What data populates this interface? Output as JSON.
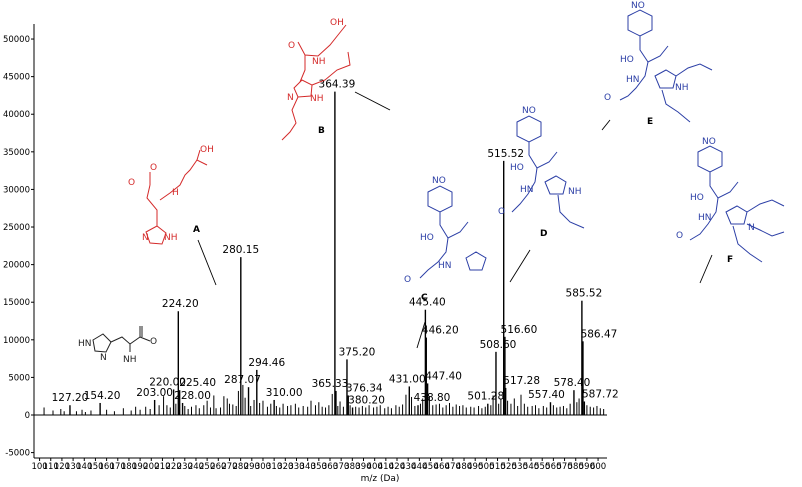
{
  "chart_data": {
    "type": "bar",
    "xlabel": "m/z (Da)",
    "ylabel": "",
    "xlim": [
      95,
      608
    ],
    "ylim": [
      -5000,
      52000
    ],
    "x_ticks": [
      100,
      110,
      120,
      130,
      140,
      150,
      160,
      170,
      180,
      190,
      200,
      210,
      220,
      230,
      240,
      250,
      260,
      270,
      280,
      290,
      300,
      310,
      320,
      330,
      340,
      350,
      360,
      370,
      380,
      390,
      400,
      410,
      420,
      430,
      440,
      450,
      460,
      470,
      480,
      490,
      500,
      510,
      520,
      530,
      540,
      550,
      560,
      570,
      580,
      590,
      600
    ],
    "y_ticks": [
      -5000,
      0,
      5000,
      10000,
      15000,
      20000,
      25000,
      30000,
      35000,
      40000,
      45000,
      50000
    ],
    "labeled_peaks": [
      {
        "label": "127.20",
        "x": 127.2,
        "y": 1300
      },
      {
        "label": "154.20",
        "x": 154.2,
        "y": 1600
      },
      {
        "label": "203.00",
        "x": 203.0,
        "y": 2000
      },
      {
        "label": "220.00",
        "x": 220.0,
        "y": 3400
      },
      {
        "label": "224.20",
        "x": 224.2,
        "y": 13800
      },
      {
        "label": "225.40",
        "x": 225.4,
        "y": 3300
      },
      {
        "label": "228.00",
        "x": 228.0,
        "y": 1600
      },
      {
        "label": "280.15",
        "x": 280.15,
        "y": 21000
      },
      {
        "label": "287.07",
        "x": 287.07,
        "y": 3700
      },
      {
        "label": "294.46",
        "x": 294.46,
        "y": 6000
      },
      {
        "label": "310.00",
        "x": 310.0,
        "y": 2000
      },
      {
        "label": "364.39",
        "x": 364.39,
        "y": 43000
      },
      {
        "label": "365.33",
        "x": 365.33,
        "y": 3200
      },
      {
        "label": "375.20",
        "x": 375.2,
        "y": 7400
      },
      {
        "label": "376.34",
        "x": 376.34,
        "y": 2600
      },
      {
        "label": "380.20",
        "x": 380.2,
        "y": 1000
      },
      {
        "label": "431.00",
        "x": 431.0,
        "y": 3800
      },
      {
        "label": "438.80",
        "x": 438.8,
        "y": 1300
      },
      {
        "label": "445.40",
        "x": 445.4,
        "y": 14000
      },
      {
        "label": "446.20",
        "x": 446.2,
        "y": 10300
      },
      {
        "label": "447.40",
        "x": 447.4,
        "y": 4200
      },
      {
        "label": "501.28",
        "x": 501.28,
        "y": 1500
      },
      {
        "label": "508.60",
        "x": 508.6,
        "y": 8400
      },
      {
        "label": "515.52",
        "x": 515.52,
        "y": 33800
      },
      {
        "label": "516.60",
        "x": 516.6,
        "y": 10400
      },
      {
        "label": "517.28",
        "x": 517.28,
        "y": 3600
      },
      {
        "label": "557.40",
        "x": 557.4,
        "y": 1700
      },
      {
        "label": "578.40",
        "x": 578.4,
        "y": 3300
      },
      {
        "label": "585.52",
        "x": 585.52,
        "y": 15200
      },
      {
        "label": "586.47",
        "x": 586.47,
        "y": 9800
      },
      {
        "label": "587.72",
        "x": 587.72,
        "y": 1800
      }
    ],
    "minor_peaks": [
      {
        "x": 104,
        "y": 1000
      },
      {
        "x": 112,
        "y": 600
      },
      {
        "x": 119,
        "y": 800
      },
      {
        "x": 122,
        "y": 500
      },
      {
        "x": 133,
        "y": 500
      },
      {
        "x": 138,
        "y": 700
      },
      {
        "x": 141,
        "y": 400
      },
      {
        "x": 146,
        "y": 600
      },
      {
        "x": 160,
        "y": 700
      },
      {
        "x": 167,
        "y": 500
      },
      {
        "x": 175,
        "y": 900
      },
      {
        "x": 182,
        "y": 600
      },
      {
        "x": 186,
        "y": 1100
      },
      {
        "x": 190,
        "y": 700
      },
      {
        "x": 195,
        "y": 1100
      },
      {
        "x": 199,
        "y": 800
      },
      {
        "x": 207,
        "y": 1300
      },
      {
        "x": 211,
        "y": 2500
      },
      {
        "x": 214,
        "y": 1300
      },
      {
        "x": 217,
        "y": 1000
      },
      {
        "x": 222,
        "y": 1500
      },
      {
        "x": 230,
        "y": 1200
      },
      {
        "x": 233,
        "y": 800
      },
      {
        "x": 236,
        "y": 1100
      },
      {
        "x": 240,
        "y": 1300
      },
      {
        "x": 243,
        "y": 900
      },
      {
        "x": 247,
        "y": 1300
      },
      {
        "x": 250,
        "y": 1900
      },
      {
        "x": 253,
        "y": 1000
      },
      {
        "x": 256,
        "y": 2600
      },
      {
        "x": 258,
        "y": 900
      },
      {
        "x": 262,
        "y": 1000
      },
      {
        "x": 265,
        "y": 2500
      },
      {
        "x": 268,
        "y": 2200
      },
      {
        "x": 270,
        "y": 1500
      },
      {
        "x": 273,
        "y": 1400
      },
      {
        "x": 276,
        "y": 1200
      },
      {
        "x": 278,
        "y": 3200
      },
      {
        "x": 282,
        "y": 4000
      },
      {
        "x": 284,
        "y": 2300
      },
      {
        "x": 289,
        "y": 1200
      },
      {
        "x": 292,
        "y": 2000
      },
      {
        "x": 297,
        "y": 1600
      },
      {
        "x": 300,
        "y": 1900
      },
      {
        "x": 304,
        "y": 1100
      },
      {
        "x": 307,
        "y": 1500
      },
      {
        "x": 312,
        "y": 1200
      },
      {
        "x": 315,
        "y": 1000
      },
      {
        "x": 318,
        "y": 1500
      },
      {
        "x": 322,
        "y": 1200
      },
      {
        "x": 325,
        "y": 1300
      },
      {
        "x": 329,
        "y": 1500
      },
      {
        "x": 332,
        "y": 1000
      },
      {
        "x": 336,
        "y": 1200
      },
      {
        "x": 340,
        "y": 1100
      },
      {
        "x": 343,
        "y": 1900
      },
      {
        "x": 347,
        "y": 1300
      },
      {
        "x": 350,
        "y": 1700
      },
      {
        "x": 353,
        "y": 1100
      },
      {
        "x": 356,
        "y": 1000
      },
      {
        "x": 359,
        "y": 1300
      },
      {
        "x": 362,
        "y": 2800
      },
      {
        "x": 367,
        "y": 1200
      },
      {
        "x": 369,
        "y": 1800
      },
      {
        "x": 372,
        "y": 1100
      },
      {
        "x": 378,
        "y": 1300
      },
      {
        "x": 383,
        "y": 1100
      },
      {
        "x": 386,
        "y": 1000
      },
      {
        "x": 389,
        "y": 1200
      },
      {
        "x": 392,
        "y": 1000
      },
      {
        "x": 395,
        "y": 1300
      },
      {
        "x": 399,
        "y": 1000
      },
      {
        "x": 402,
        "y": 1100
      },
      {
        "x": 405,
        "y": 1300
      },
      {
        "x": 409,
        "y": 900
      },
      {
        "x": 412,
        "y": 1100
      },
      {
        "x": 415,
        "y": 900
      },
      {
        "x": 419,
        "y": 1300
      },
      {
        "x": 422,
        "y": 1100
      },
      {
        "x": 425,
        "y": 1400
      },
      {
        "x": 428,
        "y": 2700
      },
      {
        "x": 433,
        "y": 2400
      },
      {
        "x": 436,
        "y": 1200
      },
      {
        "x": 441,
        "y": 1500
      },
      {
        "x": 443,
        "y": 2200
      },
      {
        "x": 449,
        "y": 2500
      },
      {
        "x": 452,
        "y": 1300
      },
      {
        "x": 455,
        "y": 1400
      },
      {
        "x": 458,
        "y": 1500
      },
      {
        "x": 461,
        "y": 1000
      },
      {
        "x": 464,
        "y": 1300
      },
      {
        "x": 467,
        "y": 1600
      },
      {
        "x": 470,
        "y": 1100
      },
      {
        "x": 473,
        "y": 1400
      },
      {
        "x": 476,
        "y": 1200
      },
      {
        "x": 479,
        "y": 1300
      },
      {
        "x": 482,
        "y": 1000
      },
      {
        "x": 486,
        "y": 1100
      },
      {
        "x": 489,
        "y": 1000
      },
      {
        "x": 493,
        "y": 1200
      },
      {
        "x": 496,
        "y": 900
      },
      {
        "x": 499,
        "y": 1100
      },
      {
        "x": 504,
        "y": 1300
      },
      {
        "x": 506,
        "y": 2600
      },
      {
        "x": 511,
        "y": 1500
      },
      {
        "x": 513,
        "y": 2200
      },
      {
        "x": 519,
        "y": 1900
      },
      {
        "x": 522,
        "y": 1500
      },
      {
        "x": 525,
        "y": 2200
      },
      {
        "x": 528,
        "y": 1200
      },
      {
        "x": 531,
        "y": 2700
      },
      {
        "x": 534,
        "y": 1500
      },
      {
        "x": 537,
        "y": 1100
      },
      {
        "x": 541,
        "y": 1200
      },
      {
        "x": 544,
        "y": 1300
      },
      {
        "x": 547,
        "y": 900
      },
      {
        "x": 551,
        "y": 1200
      },
      {
        "x": 554,
        "y": 1000
      },
      {
        "x": 560,
        "y": 1300
      },
      {
        "x": 563,
        "y": 1000
      },
      {
        "x": 566,
        "y": 1100
      },
      {
        "x": 569,
        "y": 1200
      },
      {
        "x": 572,
        "y": 900
      },
      {
        "x": 575,
        "y": 1500
      },
      {
        "x": 581,
        "y": 1700
      },
      {
        "x": 583,
        "y": 2200
      },
      {
        "x": 590,
        "y": 1300
      },
      {
        "x": 593,
        "y": 1100
      },
      {
        "x": 596,
        "y": 1000
      },
      {
        "x": 599,
        "y": 1200
      },
      {
        "x": 602,
        "y": 900
      },
      {
        "x": 605,
        "y": 800
      }
    ],
    "annotations": {
      "A": "A",
      "B": "B",
      "C": "C",
      "D": "D",
      "E": "E",
      "F": "F",
      "no2": "NO",
      "no2_sub": "2",
      "oh": "OH",
      "ho": "HO",
      "o_minus": "O",
      "minus": "−",
      "nh": "NH",
      "hn": "HN",
      "h": "H",
      "n": "N",
      "nh2": "NH",
      "nh2_sub": "2"
    },
    "colors": {
      "red_structure": "#d42a2a",
      "blue_structure": "#2c3fa6",
      "black_structure": "#222222"
    }
  }
}
